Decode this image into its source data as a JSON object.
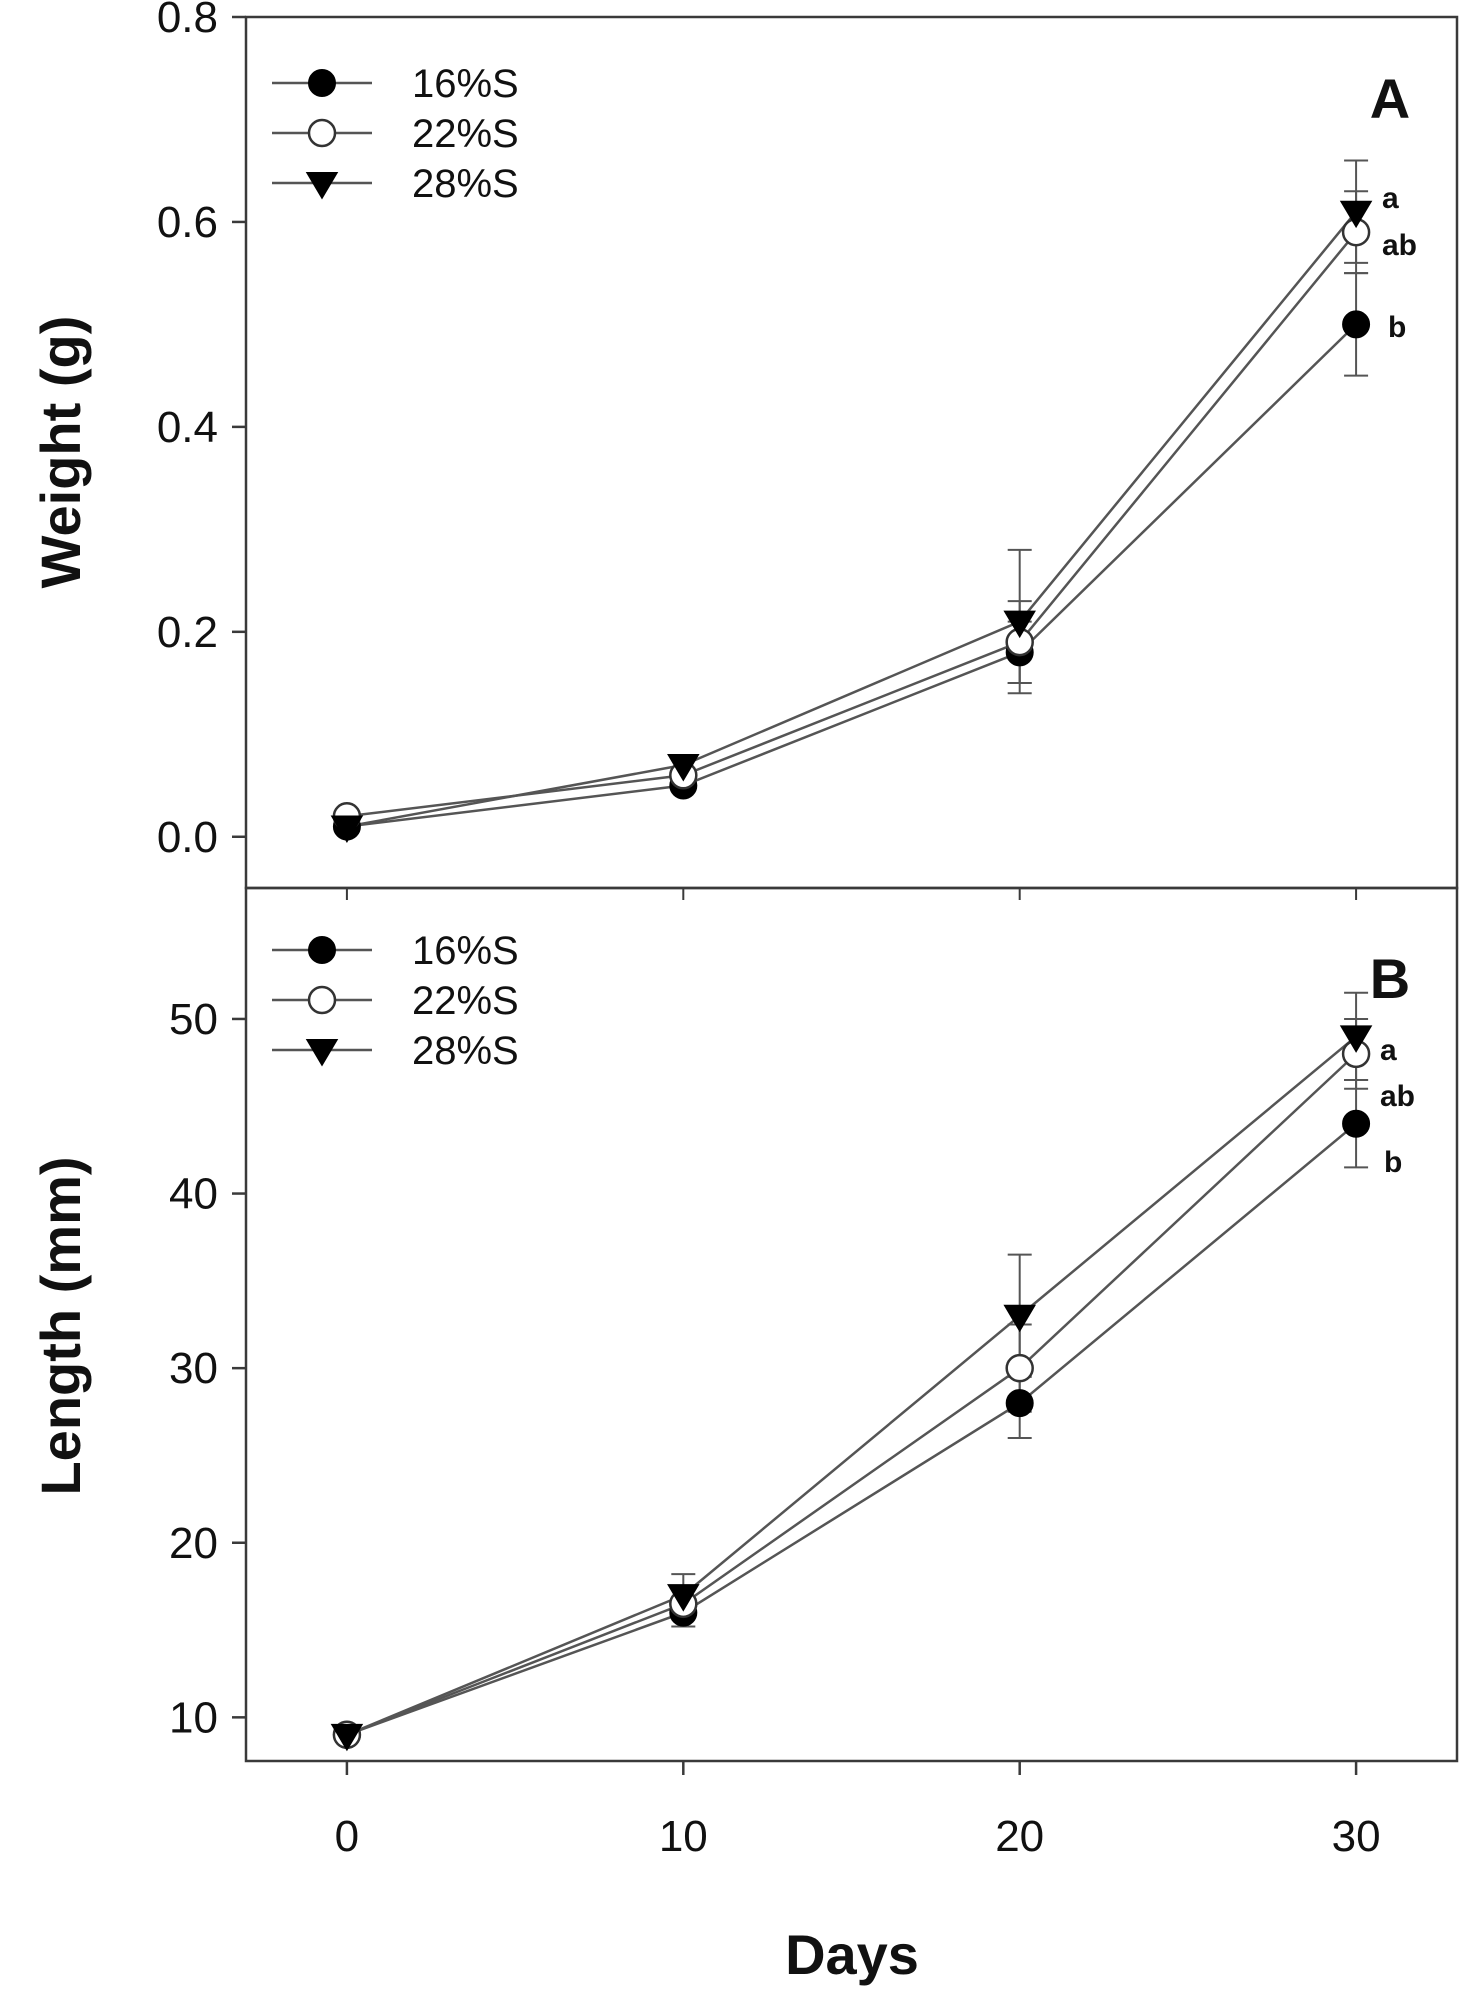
{
  "chart_data": [
    {
      "type": "line",
      "panel_label": "A",
      "title": "",
      "ylabel": "Weight (g)",
      "xlabel": "",
      "x": [
        0,
        10,
        20,
        30
      ],
      "xlim": [
        -3,
        33
      ],
      "ylim": [
        -0.05,
        0.8
      ],
      "yticks": [
        0.0,
        0.2,
        0.4,
        0.6,
        0.8
      ],
      "ytick_labels": [
        "0.0",
        "0.2",
        "0.4",
        "0.6",
        "0.8"
      ],
      "grid": false,
      "legend_position": "top-left",
      "series": [
        {
          "name": "16%S",
          "marker": "filled-circle",
          "values": [
            0.01,
            0.05,
            0.18,
            0.5
          ],
          "errors": [
            0.005,
            0.005,
            0.03,
            0.05
          ]
        },
        {
          "name": "22%S",
          "marker": "open-circle",
          "values": [
            0.02,
            0.06,
            0.19,
            0.59
          ],
          "errors": [
            0.005,
            0.005,
            0.04,
            0.04
          ]
        },
        {
          "name": "28%S",
          "marker": "filled-triangle-down",
          "values": [
            0.01,
            0.07,
            0.21,
            0.61
          ],
          "errors": [
            0.005,
            0.005,
            0.07,
            0.05
          ]
        }
      ],
      "annotations": [
        "a",
        "ab",
        "b"
      ]
    },
    {
      "type": "line",
      "panel_label": "B",
      "title": "",
      "ylabel": "Length (mm)",
      "xlabel": "Days",
      "x": [
        0,
        10,
        20,
        30
      ],
      "xlim": [
        -3,
        33
      ],
      "xticks": [
        0,
        10,
        20,
        30
      ],
      "xtick_labels": [
        "0",
        "10",
        "20",
        "30"
      ],
      "ylim": [
        7.5,
        57.5
      ],
      "yticks": [
        10,
        20,
        30,
        40,
        50
      ],
      "ytick_labels": [
        "10",
        "20",
        "30",
        "40",
        "50"
      ],
      "grid": false,
      "legend_position": "top-left",
      "series": [
        {
          "name": "16%S",
          "marker": "filled-circle",
          "values": [
            9,
            16,
            28,
            44
          ],
          "errors": [
            0.3,
            0.8,
            2.0,
            2.5
          ]
        },
        {
          "name": "22%S",
          "marker": "open-circle",
          "values": [
            9,
            16.5,
            30,
            48
          ],
          "errors": [
            0.3,
            0.8,
            2.5,
            2.0
          ]
        },
        {
          "name": "28%S",
          "marker": "filled-triangle-down",
          "values": [
            9,
            17,
            33,
            49
          ],
          "errors": [
            0.3,
            1.2,
            3.5,
            2.5
          ]
        }
      ],
      "annotations": [
        "a",
        "ab",
        "b"
      ]
    }
  ]
}
